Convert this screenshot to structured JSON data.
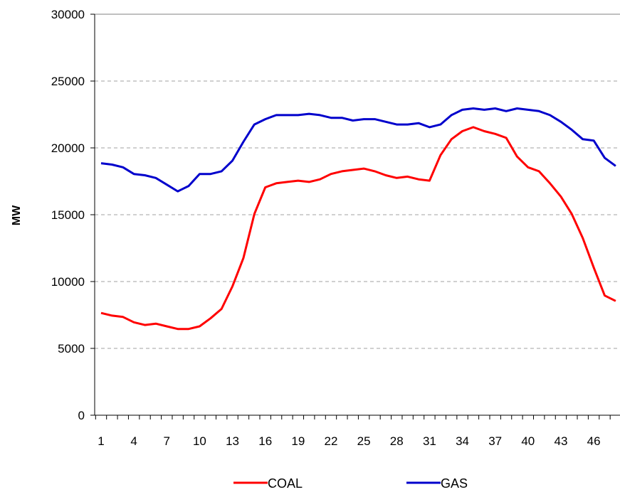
{
  "chart_data": {
    "type": "line",
    "title": "",
    "xlabel": "",
    "ylabel": "MW",
    "ylim": [
      0,
      30000
    ],
    "xlim": [
      1,
      48
    ],
    "y_ticks": [
      0,
      5000,
      10000,
      15000,
      20000,
      25000,
      30000
    ],
    "y_tick_labels": [
      "0",
      "5000",
      "10000",
      "15000",
      "20000",
      "25000",
      "30000"
    ],
    "x_tick_labels": [
      "1",
      "4",
      "7",
      "10",
      "13",
      "16",
      "19",
      "22",
      "25",
      "28",
      "31",
      "34",
      "37",
      "40",
      "43",
      "46"
    ],
    "x_tick_values": [
      1,
      4,
      7,
      10,
      13,
      16,
      19,
      22,
      25,
      28,
      31,
      34,
      37,
      40,
      43,
      46
    ],
    "grid": "horizontal dashed",
    "legend_position": "bottom",
    "x": [
      1,
      2,
      3,
      4,
      5,
      6,
      7,
      8,
      9,
      10,
      11,
      12,
      13,
      14,
      15,
      16,
      17,
      18,
      19,
      20,
      21,
      22,
      23,
      24,
      25,
      26,
      27,
      28,
      29,
      30,
      31,
      32,
      33,
      34,
      35,
      36,
      37,
      38,
      39,
      40,
      41,
      42,
      43,
      44,
      45,
      46,
      47,
      48
    ],
    "series": [
      {
        "name": "COAL",
        "color": "#ff0000",
        "values": [
          7650,
          7450,
          7350,
          6950,
          6750,
          6850,
          6650,
          6450,
          6450,
          6650,
          7250,
          7950,
          9650,
          11750,
          15050,
          17050,
          17350,
          17450,
          17550,
          17450,
          17650,
          18050,
          18250,
          18350,
          18450,
          18250,
          17950,
          17750,
          17850,
          17650,
          17550,
          19450,
          20650,
          21250,
          21550,
          21250,
          21050,
          20750,
          19350,
          18550,
          18250,
          17350,
          16350,
          15050,
          13250,
          11050,
          8950,
          8550
        ]
      },
      {
        "name": "GAS",
        "color": "#0000cc",
        "values": [
          18850,
          18750,
          18550,
          18050,
          17950,
          17750,
          17250,
          16750,
          17150,
          18050,
          18050,
          18250,
          19050,
          20450,
          21750,
          22150,
          22450,
          22450,
          22450,
          22550,
          22450,
          22250,
          22250,
          22050,
          22150,
          22150,
          21950,
          21750,
          21750,
          21850,
          21550,
          21750,
          22450,
          22850,
          22950,
          22850,
          22950,
          22750,
          22950,
          22850,
          22750,
          22450,
          21950,
          21350,
          20650,
          20550,
          19250,
          18650
        ]
      }
    ]
  }
}
